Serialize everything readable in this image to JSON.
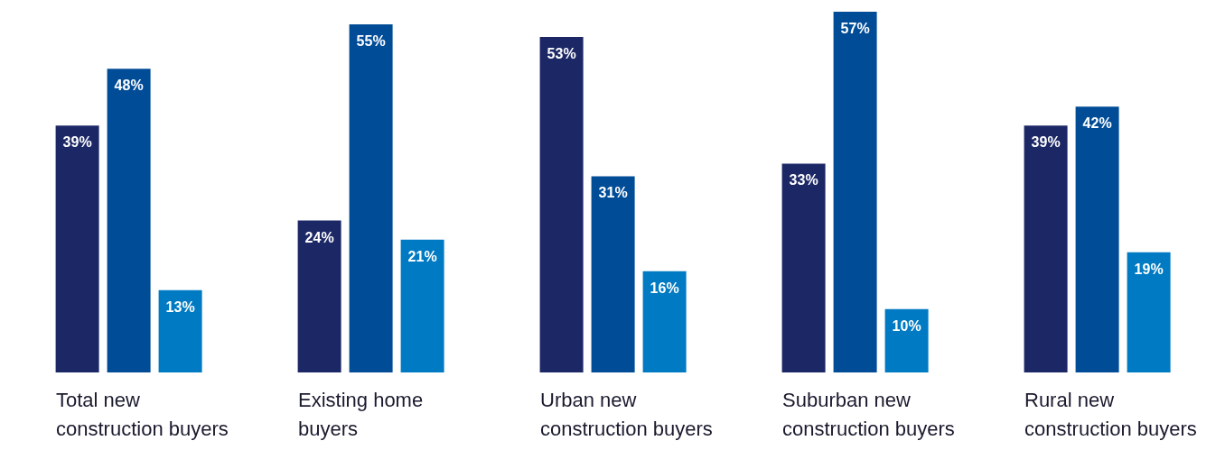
{
  "chart_data": {
    "type": "bar",
    "categories": [
      "Total new construction buyers",
      "Existing home buyers",
      "Urban new construction buyers",
      "Suburban new construction buyers",
      "Rural new construction buyers"
    ],
    "series": [
      {
        "color": "#1c2766",
        "values": [
          39,
          24,
          53,
          33,
          39
        ],
        "value_labels": [
          "39%",
          "24%",
          "53%",
          "33%",
          "39%"
        ]
      },
      {
        "color": "#004c97",
        "values": [
          48,
          55,
          31,
          57,
          42
        ],
        "value_labels": [
          "48%",
          "55%",
          "31%",
          "57%",
          "42%"
        ]
      },
      {
        "color": "#007ac2",
        "values": [
          13,
          21,
          16,
          10,
          19
        ],
        "value_labels": [
          "13%",
          "21%",
          "16%",
          "10%",
          "19%"
        ]
      }
    ],
    "grid": false,
    "legend": false
  }
}
